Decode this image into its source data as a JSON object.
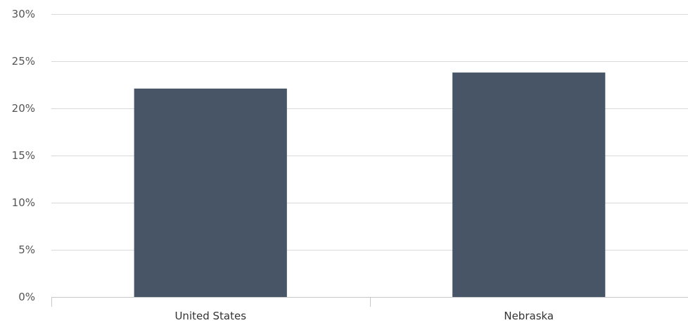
{
  "chart_data": {
    "type": "bar",
    "categories": [
      "United States",
      "Nebraska"
    ],
    "series": [
      {
        "values": [
          22.1,
          23.8
        ]
      }
    ],
    "ylim": [
      0,
      30
    ],
    "yticks": [
      0,
      5,
      10,
      15,
      20,
      25,
      30
    ],
    "ytick_labels": [
      "0%",
      "5%",
      "10%",
      "15%",
      "20%",
      "25%",
      "30%"
    ],
    "bar_color": "#475566",
    "grid": true,
    "legend": "none"
  }
}
